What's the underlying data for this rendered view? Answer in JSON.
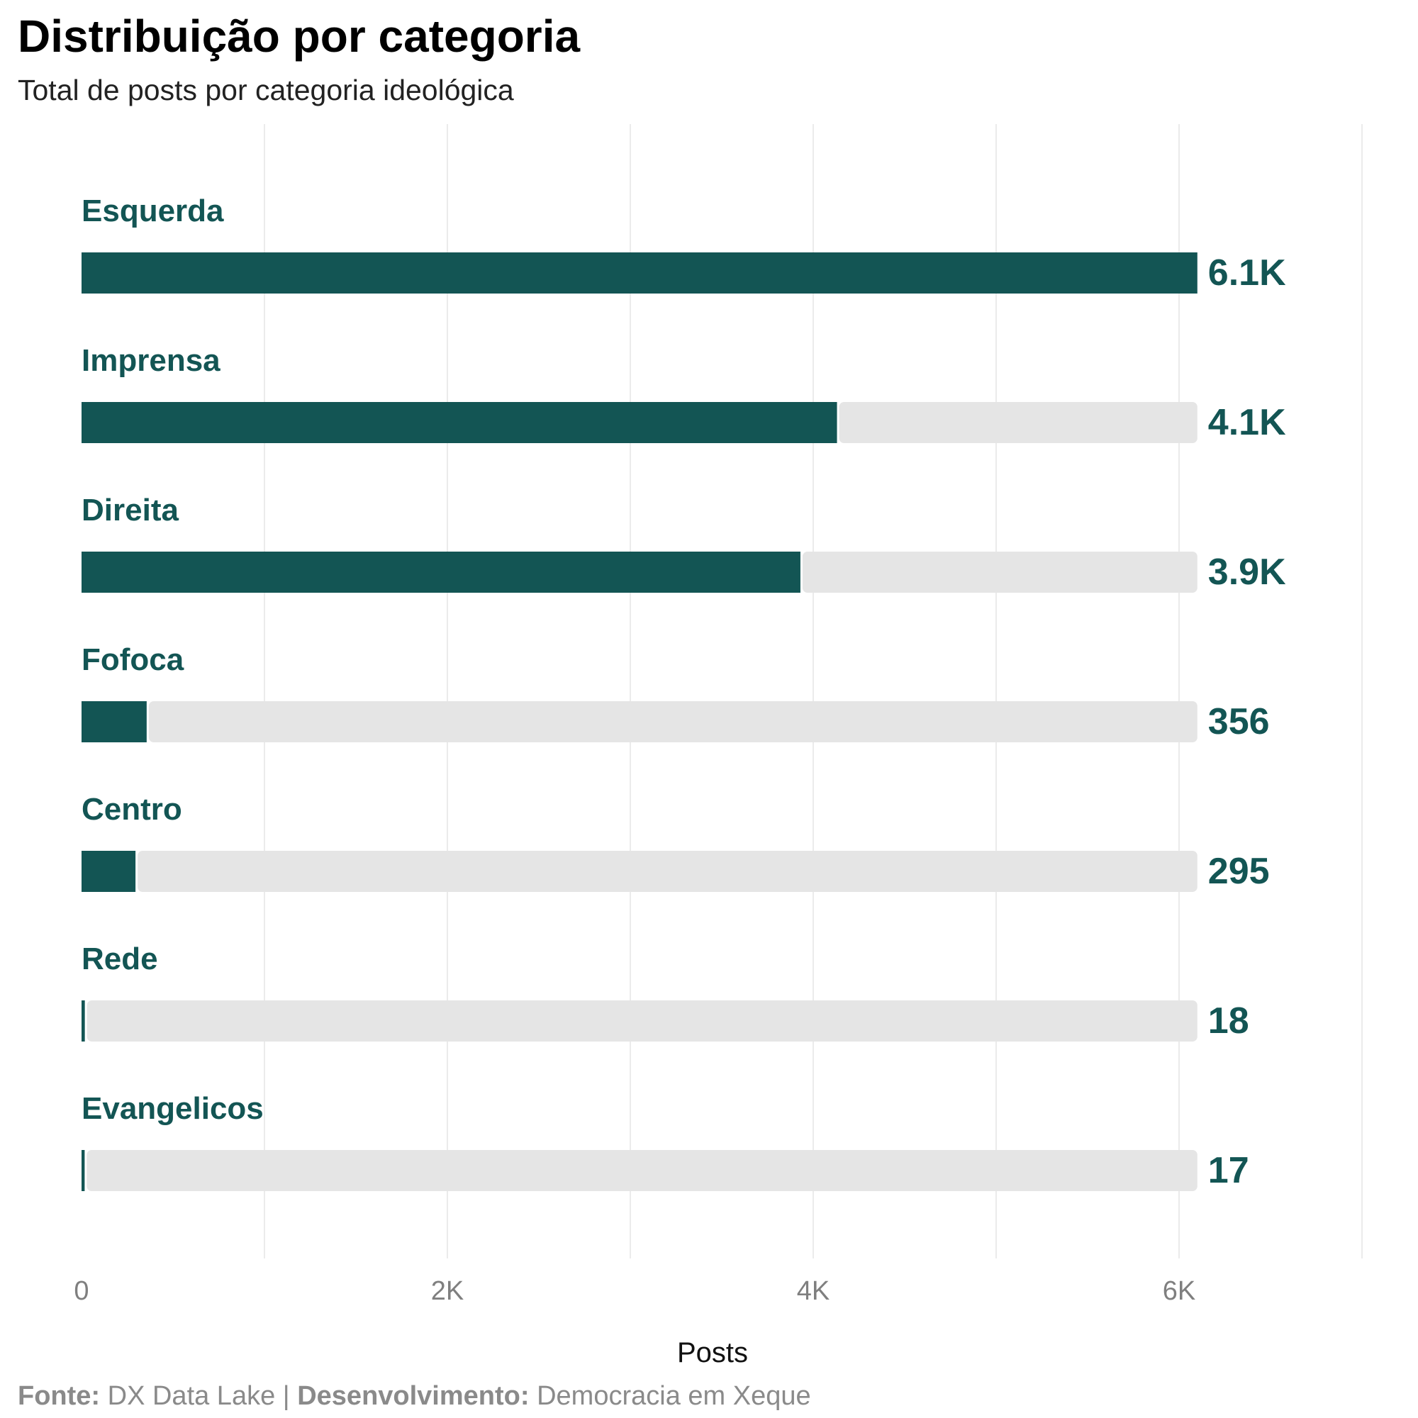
{
  "title": "Distribuição por categoria",
  "subtitle": "Total de posts por categoria ideológica",
  "caption": {
    "source_label": "Fonte:",
    "source_value": "DX Data Lake",
    "separator": "|",
    "dev_label": "Desenvolvimento:",
    "dev_value": "Democracia em Xeque"
  },
  "colors": {
    "bar": "#135554",
    "track": "#e5e5e5",
    "label": "#135554",
    "grid": "#ebebeb",
    "tick": "#7f7f7f"
  },
  "chart_data": {
    "type": "bar",
    "orientation": "horizontal",
    "title": "Distribuição por categoria",
    "subtitle": "Total de posts por categoria ideológica",
    "xlabel": "Posts",
    "ylabel": "",
    "xlim": [
      0,
      7000
    ],
    "x_ticks": [
      0,
      2000,
      4000,
      6000
    ],
    "x_tick_labels": [
      "0",
      "2K",
      "4K",
      "6K"
    ],
    "grid": true,
    "legend": "none",
    "categories": [
      "Esquerda",
      "Imprensa",
      "Direita",
      "Fofoca",
      "Centro",
      "Rede",
      "Evangelicos"
    ],
    "values": [
      6100,
      4130,
      3930,
      356,
      295,
      18,
      17
    ],
    "value_labels": [
      "6.1K",
      "4.1K",
      "3.9K",
      "356",
      "295",
      "18",
      "17"
    ],
    "track_max": 6100
  }
}
